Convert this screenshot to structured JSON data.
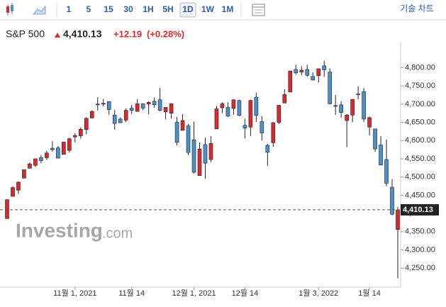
{
  "toolbar": {
    "intervals": [
      "1",
      "5",
      "15",
      "30",
      "1H",
      "5H",
      "1D",
      "1W",
      "1M"
    ],
    "active": "1D",
    "menu": "기술 차트"
  },
  "chart_data": {
    "type": "candlestick",
    "title": "S&P 500",
    "change": "+12.19",
    "change_pct": "(+0.28%)",
    "watermark": "Investing",
    "watermark_suffix": ".com",
    "last_price": {
      "value": 4410.13,
      "label": "4,410.13"
    },
    "up_color": "#d9292f",
    "down_color": "#4a90c9",
    "ylim": [
      4198,
      4830
    ],
    "yticks": [
      {
        "value": 4250,
        "label": "4,250.00"
      },
      {
        "value": 4300,
        "label": "4,300.00"
      },
      {
        "value": 4350,
        "label": "4,350.00"
      },
      {
        "value": 4400,
        "label": "4,400.00"
      },
      {
        "value": 4450,
        "label": "4,450.00"
      },
      {
        "value": 4500,
        "label": "4,500.00"
      },
      {
        "value": 4550,
        "label": "4,550.00"
      },
      {
        "value": 4600,
        "label": "4,600.00"
      },
      {
        "value": 4650,
        "label": "4,650.00"
      },
      {
        "value": 4700,
        "label": "4,700.00"
      },
      {
        "value": 4750,
        "label": "4,750.00"
      },
      {
        "value": 4800,
        "label": "4,800.00"
      }
    ],
    "categories": [
      null,
      null,
      null,
      null,
      null,
      null,
      null,
      null,
      null,
      null,
      null,
      null,
      "11월 1, 2021",
      null,
      null,
      null,
      null,
      null,
      null,
      null,
      null,
      null,
      "11월 14",
      null,
      null,
      null,
      null,
      null,
      null,
      null,
      null,
      null,
      null,
      "12월 1, 2021",
      null,
      null,
      null,
      null,
      null,
      null,
      null,
      null,
      "12월 14",
      null,
      null,
      null,
      null,
      null,
      null,
      null,
      null,
      null,
      null,
      null,
      null,
      "1월 3, 2022",
      null,
      null,
      null,
      null,
      null,
      null,
      null,
      null,
      "1월 14",
      null,
      null,
      null,
      null,
      null
    ],
    "open": [
      4386,
      4447,
      4464,
      4497,
      4524,
      4532,
      4553,
      4553,
      4579,
      4580,
      4562,
      4573,
      4610,
      4613,
      4630,
      4662,
      4700,
      4702,
      4707,
      4670,
      4659,
      4656,
      4689,
      4680,
      4701,
      4700,
      4708,
      4712,
      4679,
      4675,
      4650,
      4628,
      4640,
      4602,
      4504,
      4589,
      4548,
      4632,
      4690,
      4691,
      4688,
      4710,
      4642,
      4637,
      4719,
      4652,
      4587,
      4594,
      4650,
      4703,
      4733,
      4795,
      4788,
      4795,
      4776,
      4778,
      4805,
      4788,
      4694,
      4698,
      4655,
      4670,
      4728,
      4734,
      4637,
      4632,
      4588,
      4548,
      4472,
      4356
    ],
    "high": [
      4439,
      4475,
      4488,
      4520,
      4540,
      4551,
      4560,
      4572,
      4598,
      4585,
      4597,
      4608,
      4620,
      4636,
      4664,
      4683,
      4719,
      4714,
      4708,
      4684,
      4664,
      4688,
      4698,
      4714,
      4701,
      4708,
      4718,
      4744,
      4692,
      4702,
      4665,
      4673,
      4646,
      4652,
      4595,
      4608,
      4612,
      4695,
      4705,
      4705,
      4713,
      4712,
      4660,
      4712,
      4731,
      4667,
      4591,
      4651,
      4697,
      4741,
      4791,
      4808,
      4804,
      4808,
      4787,
      4797,
      4819,
      4798,
      4725,
      4708,
      4673,
      4714,
      4749,
      4744,
      4666,
      4632,
      4612,
      4603,
      4494,
      4418
    ],
    "low": [
      4386,
      4447,
      4454,
      4497,
      4524,
      4527,
      4538,
      4547,
      4570,
      4551,
      4562,
      4567,
      4595,
      4605,
      4617,
      4662,
      4682,
      4694,
      4671,
      4630,
      4648,
      4650,
      4673,
      4680,
      4684,
      4672,
      4690,
      4680,
      4658,
      4660,
      4587,
      4628,
      4560,
      4510,
      4504,
      4495,
      4541,
      4632,
      4675,
      4665,
      4671,
      4667,
      4606,
      4612,
      4651,
      4600,
      4531,
      4583,
      4645,
      4703,
      4733,
      4781,
      4779,
      4775,
      4765,
      4759,
      4775,
      4699,
      4671,
      4663,
      4582,
      4650,
      4713,
      4651,
      4614,
      4569,
      4532,
      4475,
      4395,
      4222
    ],
    "close": [
      4438,
      4471,
      4486,
      4520,
      4536,
      4550,
      4545,
      4566,
      4575,
      4552,
      4596,
      4605,
      4614,
      4631,
      4661,
      4680,
      4698,
      4702,
      4685,
      4647,
      4649,
      4683,
      4683,
      4701,
      4689,
      4705,
      4698,
      4683,
      4691,
      4701,
      4595,
      4655,
      4567,
      4513,
      4577,
      4538,
      4592,
      4687,
      4701,
      4667,
      4712,
      4669,
      4634,
      4710,
      4669,
      4621,
      4568,
      4649,
      4697,
      4726,
      4791,
      4786,
      4793,
      4779,
      4766,
      4797,
      4794,
      4701,
      4696,
      4677,
      4670,
      4713,
      4726,
      4659,
      4663,
      4577,
      4533,
      4483,
      4398,
      4410
    ]
  }
}
